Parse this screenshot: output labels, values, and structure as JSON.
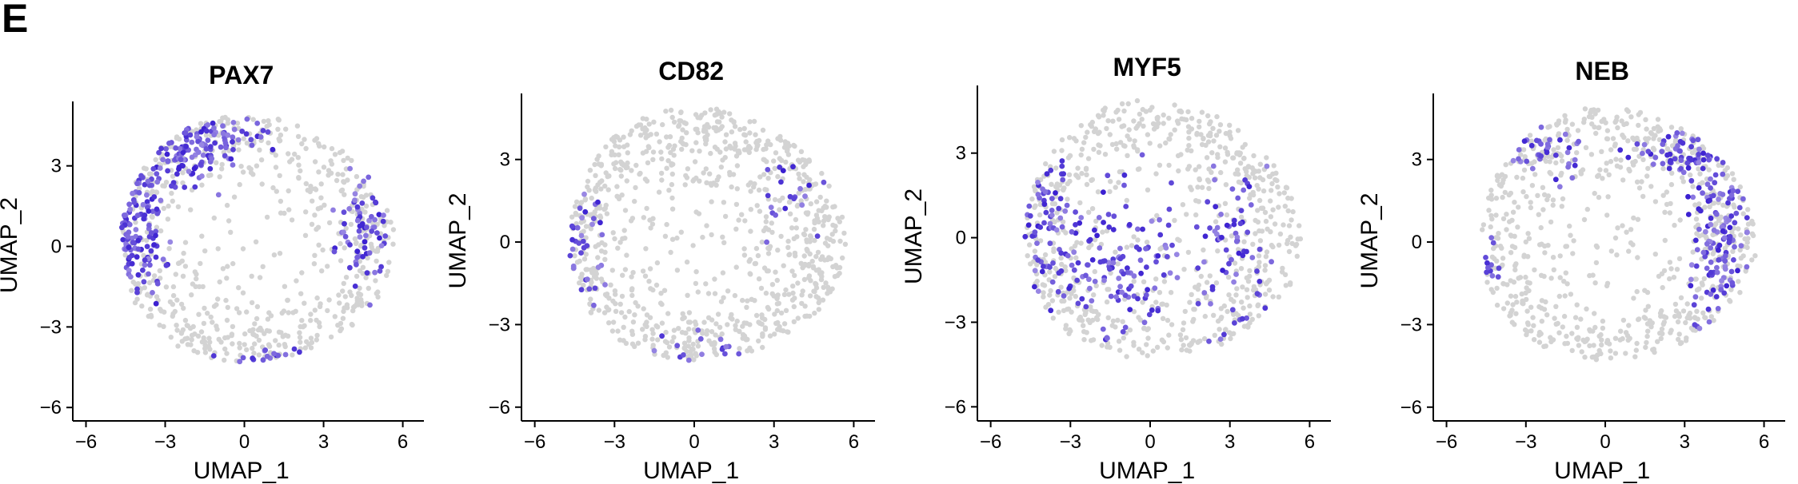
{
  "panel_label": "E",
  "colors": {
    "low": "#d3d3d3",
    "high": "#3a1fd1",
    "axis": "#000000"
  },
  "chart_data": [
    {
      "type": "scatter",
      "title": "PAX7",
      "xlabel": "UMAP_1",
      "ylabel": "UMAP_2",
      "xlim": [
        -6.5,
        6.8
      ],
      "ylim": [
        -6.5,
        5.4
      ],
      "xticks": [
        -6,
        -3,
        0,
        3,
        6
      ],
      "yticks": [
        -6,
        -3,
        0,
        3
      ],
      "xtick_labels": [
        "−6",
        "−3",
        "0",
        "3",
        "6"
      ],
      "ytick_labels": [
        "−6",
        "−3",
        "0",
        "3"
      ],
      "expression_pattern": "high in left and upper rim, bottom rim",
      "points": {
        "n_background": 620,
        "n_expressing": 330,
        "seed": 11,
        "regions": [
          [
            -4.3,
            0.8,
            1.1,
            2.6,
            0.45
          ],
          [
            -2.2,
            3.6,
            1.3,
            1.0,
            0.2
          ],
          [
            0.8,
            -4.5,
            2.2,
            0.6,
            0.15
          ],
          [
            4.4,
            0.5,
            0.9,
            2.0,
            0.12
          ],
          [
            -0.5,
            4.1,
            1.5,
            0.6,
            0.08
          ]
        ]
      }
    },
    {
      "type": "scatter",
      "title": "CD82",
      "xlabel": "UMAP_1",
      "ylabel": "UMAP_2",
      "xlim": [
        -6.5,
        6.8
      ],
      "ylim": [
        -6.5,
        5.4
      ],
      "xticks": [
        -6,
        -3,
        0,
        3,
        6
      ],
      "yticks": [
        -6,
        -3,
        0,
        3
      ],
      "xtick_labels": [
        "−6",
        "−3",
        "0",
        "3",
        "6"
      ],
      "ytick_labels": [
        "−6",
        "−3",
        "0",
        "3"
      ],
      "expression_pattern": "sparse, left rim",
      "points": {
        "n_background": 880,
        "n_expressing": 70,
        "seed": 23,
        "regions": [
          [
            -4.4,
            0.0,
            0.8,
            2.8,
            0.6
          ],
          [
            0.5,
            -4.2,
            1.8,
            0.7,
            0.2
          ],
          [
            3.8,
            1.5,
            1.2,
            1.5,
            0.2
          ]
        ]
      }
    },
    {
      "type": "scatter",
      "title": "MYF5",
      "xlabel": "UMAP_1",
      "ylabel": "UMAP_2",
      "xlim": [
        -6.5,
        6.8
      ],
      "ylim": [
        -6.5,
        5.4
      ],
      "xticks": [
        -6,
        -3,
        0,
        3,
        6
      ],
      "yticks": [
        -6,
        -3,
        0,
        3
      ],
      "xtick_labels": [
        "−6",
        "−3",
        "0",
        "3",
        "6"
      ],
      "ytick_labels": [
        "−6",
        "−3",
        "0",
        "3"
      ],
      "expression_pattern": "scattered throughout, denser on left",
      "points": {
        "n_background": 700,
        "n_expressing": 260,
        "seed": 37,
        "regions": [
          [
            -4.0,
            0.5,
            1.3,
            2.4,
            0.35
          ],
          [
            -1.0,
            -1.0,
            2.2,
            2.0,
            0.4
          ],
          [
            3.0,
            -0.5,
            1.5,
            2.5,
            0.25
          ]
        ]
      }
    },
    {
      "type": "scatter",
      "title": "NEB",
      "xlabel": "UMAP_1",
      "ylabel": "UMAP_2",
      "xlim": [
        -6.5,
        6.8
      ],
      "ylim": [
        -6.5,
        5.4
      ],
      "xticks": [
        -6,
        -3,
        0,
        3,
        6
      ],
      "yticks": [
        -6,
        -3,
        0,
        3
      ],
      "xtick_labels": [
        "−6",
        "−3",
        "0",
        "3",
        "6"
      ],
      "ytick_labels": [
        "−6",
        "−3",
        "0",
        "3"
      ],
      "expression_pattern": "high on right side and upper right",
      "points": {
        "n_background": 720,
        "n_expressing": 230,
        "seed": 53,
        "regions": [
          [
            4.2,
            0.0,
            0.9,
            2.4,
            0.5
          ],
          [
            3.0,
            3.2,
            1.2,
            0.8,
            0.25
          ],
          [
            -2.5,
            3.3,
            1.2,
            0.9,
            0.15
          ],
          [
            -4.5,
            -1.0,
            0.6,
            1.5,
            0.1
          ]
        ]
      }
    }
  ]
}
